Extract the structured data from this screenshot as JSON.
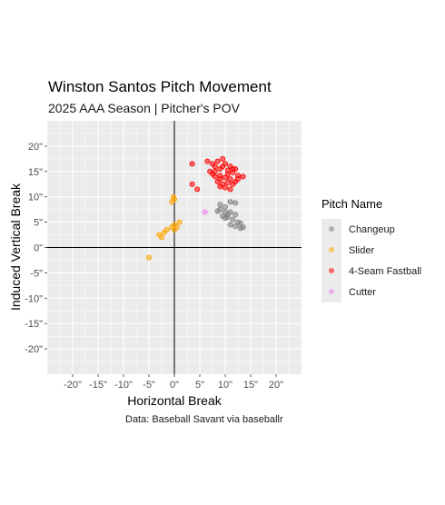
{
  "colors": {
    "Changeup": "#808080",
    "Slider": "#FFA500",
    "4-Seam Fastball": "#FF0000",
    "Cutter": "#EE82EE",
    "panel": "#EBEBEB",
    "grid": "#FFFFFF"
  },
  "caption": "Data: Baseball Savant via baseballr",
  "legend": {
    "title": "Pitch Name",
    "items": [
      "Changeup",
      "Slider",
      "4-Seam Fastball",
      "Cutter"
    ]
  },
  "chart_data": {
    "type": "scatter",
    "title": "Winston Santos Pitch Movement",
    "subtitle": "2025 AAA Season | Pitcher's POV",
    "xlabel": "Horizontal Break",
    "ylabel": "Induced Vertical Break",
    "xlim": [
      -25,
      25
    ],
    "ylim": [
      -25,
      25
    ],
    "xticks": [
      -20,
      -15,
      -10,
      -5,
      0,
      5,
      10,
      15,
      20
    ],
    "xtick_labels": [
      "-20\"",
      "-15\"",
      "-10\"",
      "-5\"",
      "0\"",
      "5\"",
      "10\"",
      "15\"",
      "20\""
    ],
    "yticks": [
      20,
      15,
      10,
      5,
      0,
      -5,
      -10,
      -15,
      -20
    ],
    "ytick_labels": [
      "20\"",
      "15\"",
      "10\"",
      "5\"",
      "0\"",
      "-5\"",
      "-10\"",
      "-15\"",
      "-20\""
    ],
    "grid": true,
    "legend_position": "right",
    "series": [
      {
        "name": "Changeup",
        "points": [
          [
            9,
            8.5
          ],
          [
            10,
            8
          ],
          [
            11,
            9
          ],
          [
            12,
            8.8
          ],
          [
            9,
            7.5
          ],
          [
            10,
            7
          ],
          [
            8.5,
            7.2
          ],
          [
            10.5,
            6.5
          ],
          [
            11,
            7
          ],
          [
            9.5,
            6.2
          ],
          [
            10,
            5.8
          ],
          [
            11.5,
            5.5
          ],
          [
            12,
            6.5
          ],
          [
            12.5,
            5
          ],
          [
            13,
            4.8
          ],
          [
            11,
            4.5
          ],
          [
            12,
            4.2
          ],
          [
            13.5,
            4
          ],
          [
            13,
            3.8
          ],
          [
            10.5,
            6
          ]
        ]
      },
      {
        "name": "Slider",
        "points": [
          [
            -5,
            -2
          ],
          [
            -3,
            2.5
          ],
          [
            -2.5,
            2
          ],
          [
            -2,
            3
          ],
          [
            -1.5,
            3.5
          ],
          [
            -0.5,
            4
          ],
          [
            0,
            3.5
          ],
          [
            0.5,
            4
          ],
          [
            1,
            5
          ],
          [
            0,
            4.5
          ],
          [
            -0.5,
            9
          ],
          [
            0,
            9.5
          ],
          [
            -0.2,
            10
          ]
        ]
      },
      {
        "name": "4-Seam Fastball",
        "points": [
          [
            3.5,
            16.5
          ],
          [
            6.5,
            17
          ],
          [
            7.5,
            16.5
          ],
          [
            8.5,
            17
          ],
          [
            9.5,
            17.5
          ],
          [
            10,
            16.5
          ],
          [
            11,
            16
          ],
          [
            12,
            15.5
          ],
          [
            7,
            15
          ],
          [
            8,
            15
          ],
          [
            9,
            15.5
          ],
          [
            10.5,
            15.2
          ],
          [
            11.5,
            14.8
          ],
          [
            12.5,
            14.2
          ],
          [
            13.5,
            14
          ],
          [
            8,
            14
          ],
          [
            9,
            14.2
          ],
          [
            10,
            13.8
          ],
          [
            11,
            13.5
          ],
          [
            12,
            13
          ],
          [
            8.5,
            13
          ],
          [
            9.5,
            12.5
          ],
          [
            10.5,
            12.8
          ],
          [
            11.5,
            12.5
          ],
          [
            9,
            12
          ],
          [
            10,
            11.8
          ],
          [
            11,
            11.5
          ],
          [
            12.5,
            13.5
          ],
          [
            7.5,
            14.5
          ],
          [
            9.5,
            16
          ],
          [
            3.5,
            12.5
          ],
          [
            4.5,
            11.5
          ],
          [
            8,
            16
          ],
          [
            10.5,
            14.5
          ],
          [
            9,
            13.5
          ],
          [
            11.5,
            15.5
          ]
        ]
      },
      {
        "name": "Cutter",
        "points": [
          [
            6,
            7
          ]
        ]
      }
    ]
  }
}
